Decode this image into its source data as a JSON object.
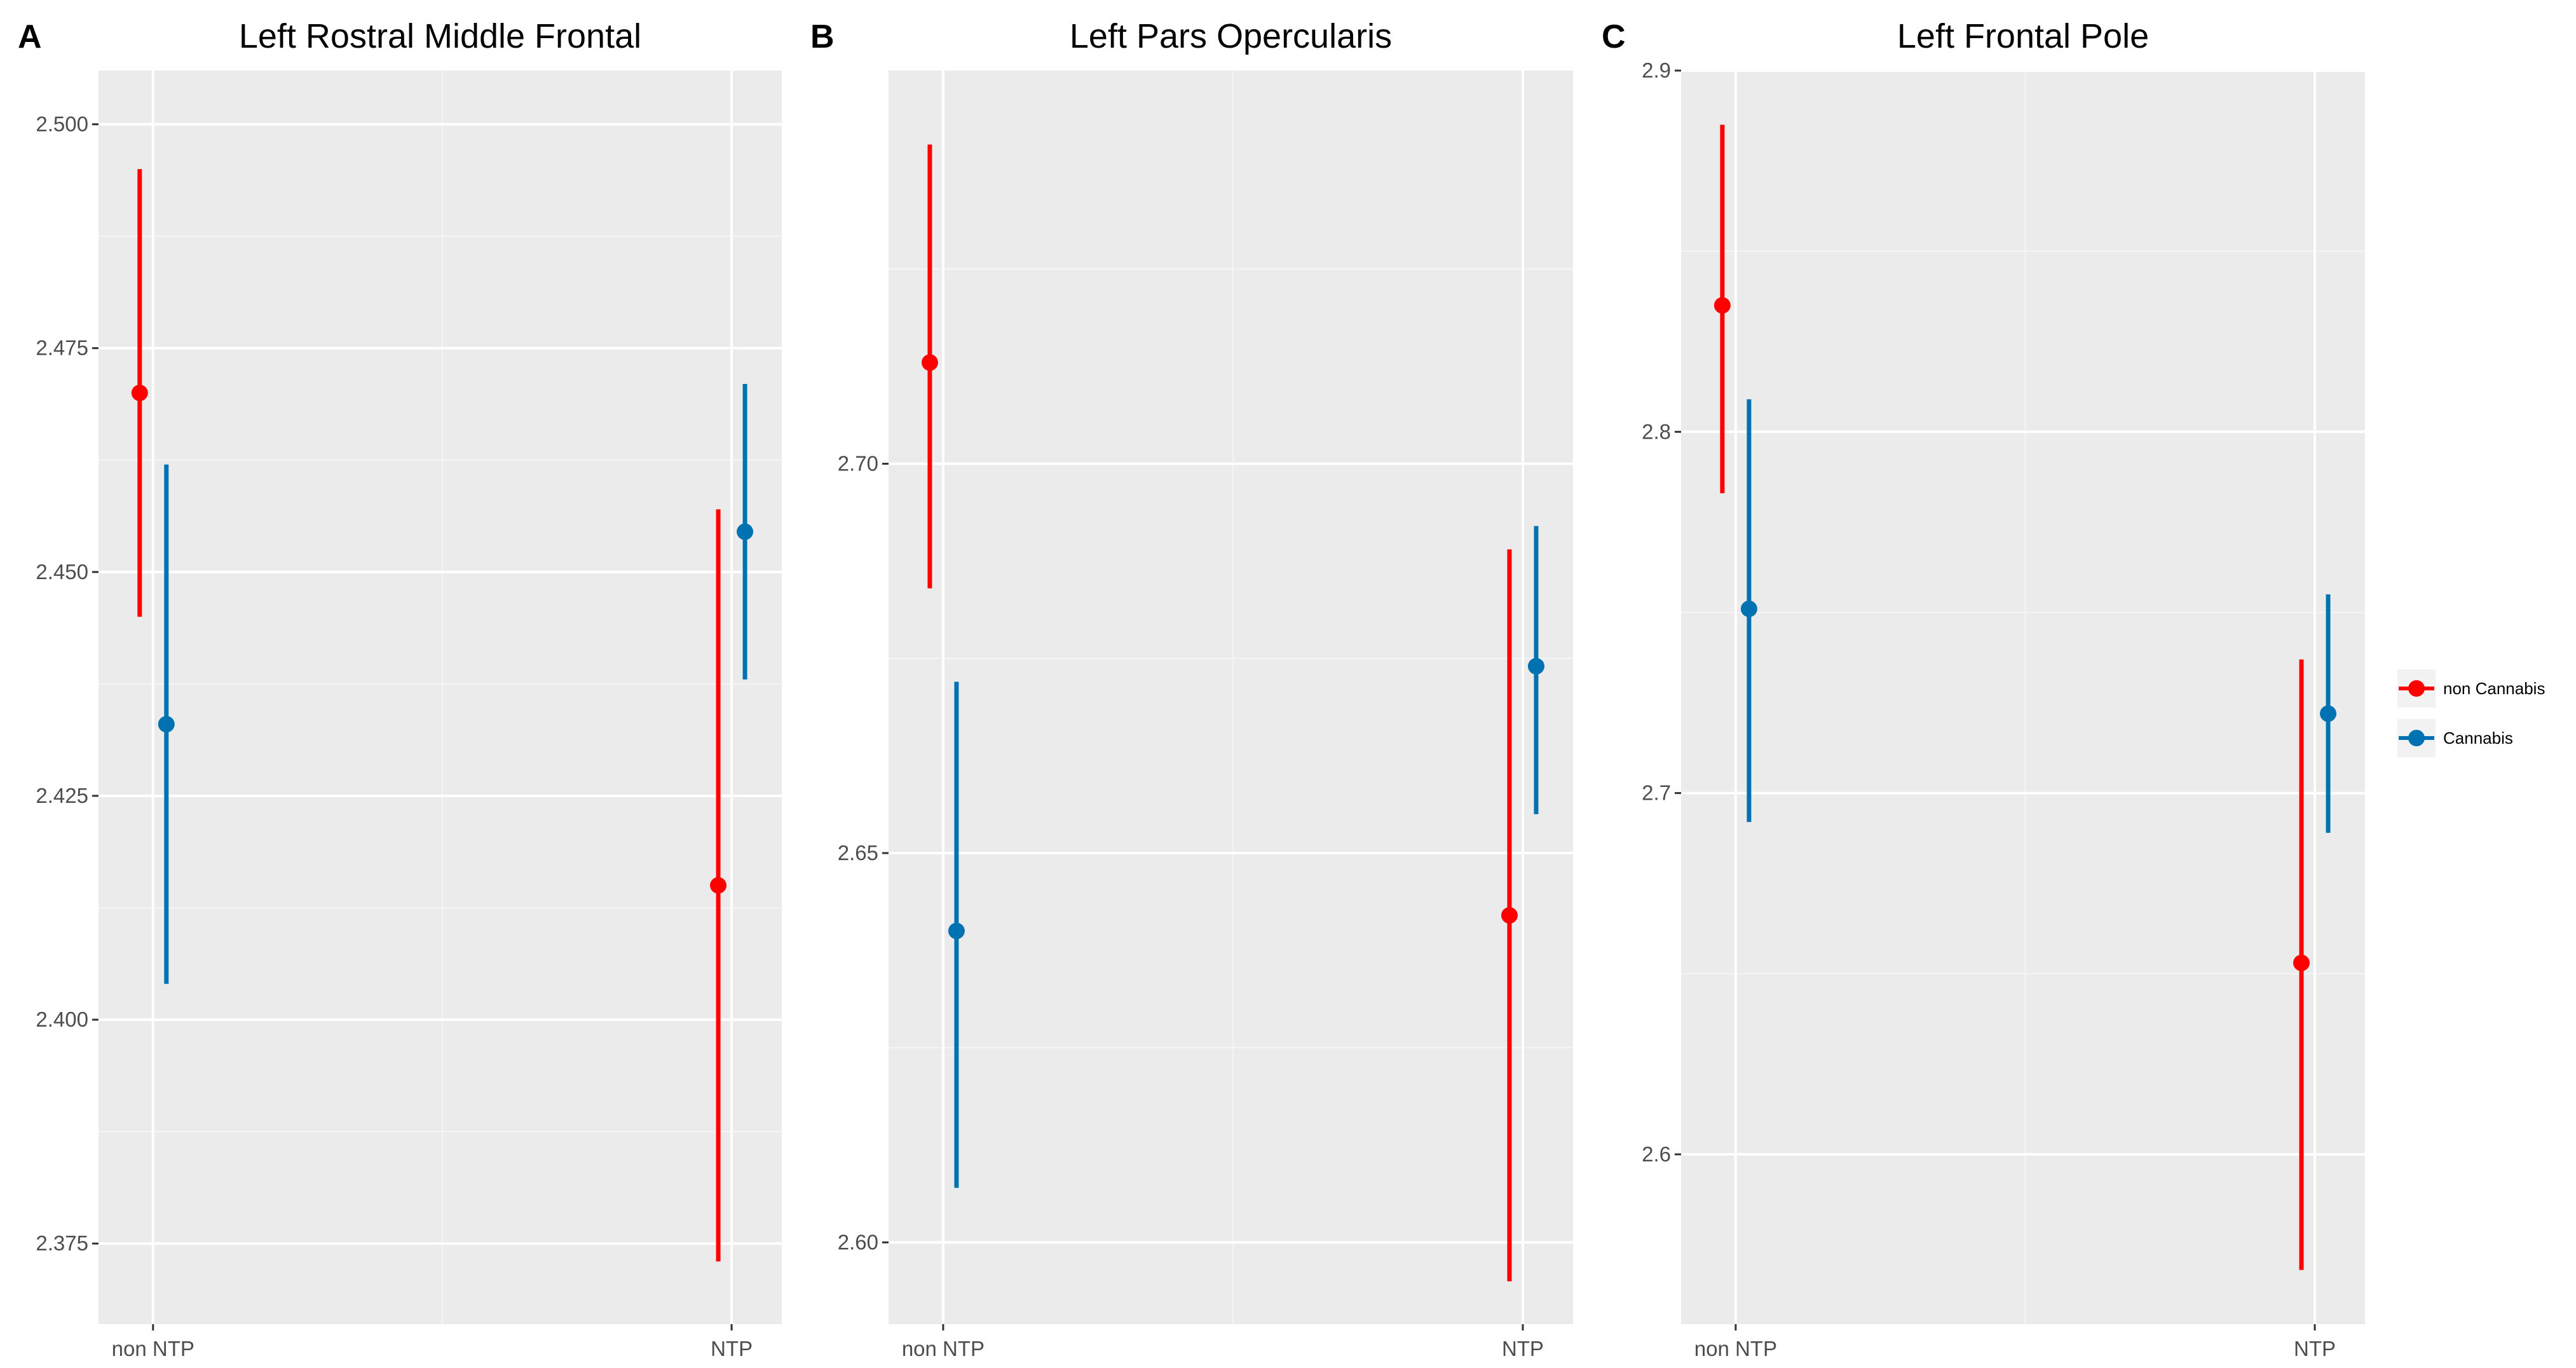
{
  "chart_data": [
    {
      "type": "errorbar",
      "panel_label": "A",
      "title": "Left Rostral Middle Frontal",
      "categories": [
        "non NTP",
        "NTP"
      ],
      "ylim": [
        2.366,
        2.506
      ],
      "y_ticks": [
        2.375,
        2.4,
        2.425,
        2.45,
        2.475,
        2.5
      ],
      "y_tick_labels": [
        "2.375",
        "2.400",
        "2.425",
        "2.450",
        "2.475",
        "2.500"
      ],
      "grid": true,
      "series": [
        {
          "name": "non Cannabis",
          "color": "#ff0000",
          "points": [
            {
              "category": "non NTP",
              "y": 2.47,
              "lo": 2.445,
              "hi": 2.495
            },
            {
              "category": "NTP",
              "y": 2.415,
              "lo": 2.373,
              "hi": 2.457
            }
          ]
        },
        {
          "name": "Cannabis",
          "color": "#0072b2",
          "points": [
            {
              "category": "non NTP",
              "y": 2.433,
              "lo": 2.404,
              "hi": 2.462
            },
            {
              "category": "NTP",
              "y": 2.4545,
              "lo": 2.438,
              "hi": 2.471
            }
          ]
        }
      ]
    },
    {
      "type": "errorbar",
      "panel_label": "B",
      "title": "Left Pars Opercularis",
      "categories": [
        "non NTP",
        "NTP"
      ],
      "ylim": [
        2.5895,
        2.7505
      ],
      "y_ticks": [
        2.6,
        2.65,
        2.7
      ],
      "y_tick_labels": [
        "2.60",
        "2.65",
        "2.70"
      ],
      "grid": true,
      "series": [
        {
          "name": "non Cannabis",
          "color": "#ff0000",
          "points": [
            {
              "category": "non NTP",
              "y": 2.713,
              "lo": 2.684,
              "hi": 2.741
            },
            {
              "category": "NTP",
              "y": 2.642,
              "lo": 2.595,
              "hi": 2.689
            }
          ]
        },
        {
          "name": "Cannabis",
          "color": "#0072b2",
          "points": [
            {
              "category": "non NTP",
              "y": 2.64,
              "lo": 2.607,
              "hi": 2.672
            },
            {
              "category": "NTP",
              "y": 2.674,
              "lo": 2.655,
              "hi": 2.692
            }
          ]
        }
      ]
    },
    {
      "type": "errorbar",
      "panel_label": "C",
      "title": "Left Frontal Pole",
      "categories": [
        "non NTP",
        "NTP"
      ],
      "ylim": [
        2.553,
        2.9
      ],
      "y_ticks": [
        2.6,
        2.7,
        2.8,
        2.9
      ],
      "y_tick_labels": [
        "2.6",
        "2.7",
        "2.8",
        "2.9"
      ],
      "grid": true,
      "series": [
        {
          "name": "non Cannabis",
          "color": "#ff0000",
          "points": [
            {
              "category": "non NTP",
              "y": 2.835,
              "lo": 2.783,
              "hi": 2.885
            },
            {
              "category": "NTP",
              "y": 2.653,
              "lo": 2.568,
              "hi": 2.737
            }
          ]
        },
        {
          "name": "Cannabis",
          "color": "#0072b2",
          "points": [
            {
              "category": "non NTP",
              "y": 2.751,
              "lo": 2.692,
              "hi": 2.809
            },
            {
              "category": "NTP",
              "y": 2.722,
              "lo": 2.689,
              "hi": 2.755
            }
          ]
        }
      ]
    }
  ],
  "legend": {
    "placement": "right",
    "items": [
      {
        "name": "non Cannabis",
        "color": "#ff0000"
      },
      {
        "name": "Cannabis",
        "color": "#0072b2"
      }
    ]
  }
}
